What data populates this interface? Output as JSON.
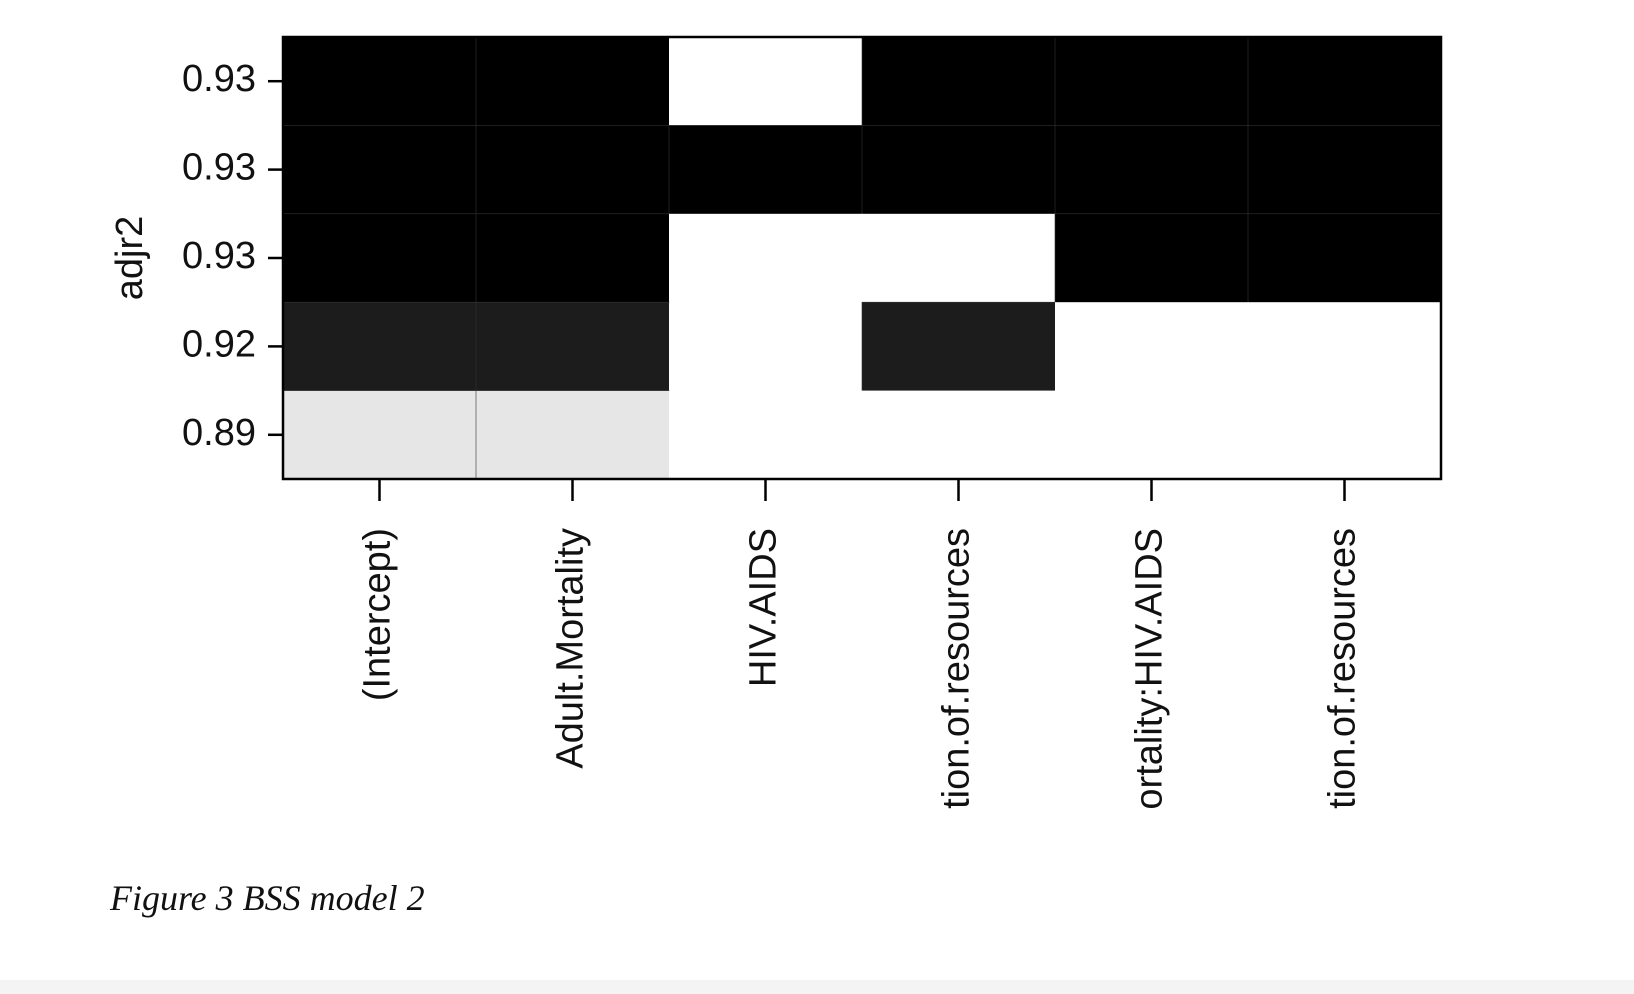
{
  "chart_data": {
    "type": "heatmap",
    "ylabel": "adjr2",
    "y_categories": [
      0.93,
      0.93,
      0.93,
      0.92,
      0.89
    ],
    "columns": [
      "(Intercept)",
      "Adult.Mortality",
      "HIV.AIDS",
      "tion.of.resources",
      "ortality:HIV.AIDS",
      "tion.of.resources"
    ],
    "values": [
      [
        1,
        1,
        0,
        1,
        1,
        1
      ],
      [
        1,
        1,
        1,
        1,
        1,
        1
      ],
      [
        1,
        1,
        0,
        0,
        1,
        1
      ],
      [
        1,
        1,
        0,
        1,
        0,
        0
      ],
      [
        1,
        1,
        0,
        0,
        0,
        0
      ]
    ],
    "row_colors": [
      "#000000",
      "#000000",
      "#000000",
      "#1c1c1c",
      "#e6e6e6"
    ],
    "empty_color": "#ffffff"
  },
  "caption": "Figure 3 BSS model 2"
}
